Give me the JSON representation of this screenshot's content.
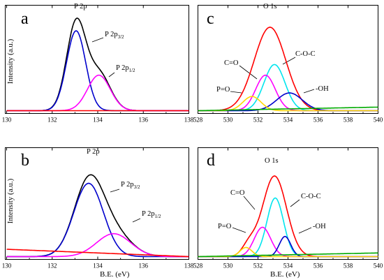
{
  "chart_data": [
    {
      "panel": "a",
      "type": "line",
      "xlim": [
        130,
        138
      ],
      "x_ticks": [
        130,
        132,
        134,
        136,
        138
      ],
      "xlabel": "",
      "ylabel": "Intensity (a.u.)",
      "y_ticks": "none",
      "grid": false,
      "legend": "none",
      "series": [
        {
          "color": "#000000",
          "peaks": [
            {
              "center": 133.05,
              "height": 0.98,
              "width": 0.42
            },
            {
              "center": 134.05,
              "height": 0.42,
              "width": 0.5
            }
          ]
        },
        {
          "color": "#0000cc",
          "peaks": [
            {
              "center": 133.05,
              "height": 0.9,
              "width": 0.42
            }
          ]
        },
        {
          "color": "#ff00ff",
          "peaks": [
            {
              "center": 134.05,
              "height": 0.4,
              "width": 0.5
            }
          ]
        },
        {
          "color": "#ff0000",
          "baseline": [
            0.0,
            0.0
          ]
        }
      ],
      "annotations": [
        {
          "text": "P 2p"
        },
        {
          "text": "P 2p",
          "sub": "3/2"
        },
        {
          "text": "P 2p",
          "sub": "1/2"
        }
      ]
    },
    {
      "panel": "b",
      "type": "line",
      "xlim": [
        130,
        138
      ],
      "x_ticks": [
        130,
        132,
        134,
        136,
        138
      ],
      "xlabel": "B.E. (eV)",
      "ylabel": "Intensity (a.u.)",
      "y_ticks": "none",
      "grid": false,
      "legend": "none",
      "series": [
        {
          "color": "#000000",
          "peaks": [
            {
              "center": 133.6,
              "height": 0.8,
              "width": 0.65
            },
            {
              "center": 134.7,
              "height": 0.25,
              "width": 0.75
            }
          ]
        },
        {
          "color": "#0000cc",
          "peaks": [
            {
              "center": 133.6,
              "height": 0.8,
              "width": 0.65
            }
          ]
        },
        {
          "color": "#ff00ff",
          "peaks": [
            {
              "center": 134.7,
              "height": 0.25,
              "width": 0.75
            }
          ]
        },
        {
          "color": "#ff0000",
          "baseline": [
            0.08,
            0.0
          ]
        }
      ],
      "annotations": [
        {
          "text": "P 2p"
        },
        {
          "text": "P 2p",
          "sub": "3/2"
        },
        {
          "text": "P 2p",
          "sub": "1/2"
        }
      ]
    },
    {
      "panel": "c",
      "type": "line",
      "xlim": [
        528,
        540
      ],
      "x_ticks": [
        528,
        530,
        532,
        534,
        536,
        538,
        540
      ],
      "xlabel": "",
      "ylabel": "",
      "y_ticks": "none",
      "grid": false,
      "legend": "none",
      "series": [
        {
          "color": "#ff0000",
          "peaks": [
            {
              "center": 532.8,
              "height": 0.94,
              "width": 1.05
            }
          ]
        },
        {
          "color": "#00e5ee",
          "peaks": [
            {
              "center": 533.1,
              "height": 0.52,
              "width": 0.7
            }
          ]
        },
        {
          "color": "#ff00ff",
          "peaks": [
            {
              "center": 532.5,
              "height": 0.4,
              "width": 0.65
            }
          ]
        },
        {
          "color": "#0000cc",
          "peaks": [
            {
              "center": 534.1,
              "height": 0.2,
              "width": 0.85
            }
          ]
        },
        {
          "color": "#ffd700",
          "peaks": [
            {
              "center": 531.6,
              "height": 0.16,
              "width": 0.6
            }
          ]
        },
        {
          "color": "#00aa00",
          "baseline": [
            0.0,
            0.04
          ]
        }
      ],
      "annotations": [
        {
          "text": "O 1s"
        },
        {
          "text": "C-O-C"
        },
        {
          "text": "C=O"
        },
        {
          "text": "P=O"
        },
        {
          "text": "-OH"
        }
      ]
    },
    {
      "panel": "d",
      "type": "line",
      "xlim": [
        528,
        540
      ],
      "x_ticks": [
        528,
        530,
        532,
        534,
        536,
        538,
        540
      ],
      "xlabel": "B.E. (eV)",
      "ylabel": "",
      "y_ticks": "none",
      "grid": false,
      "legend": "none",
      "series": [
        {
          "color": "#ff0000",
          "peaks": [
            {
              "center": 533.1,
              "height": 0.88,
              "width": 0.8
            },
            {
              "center": 531.4,
              "height": 0.12,
              "width": 0.45
            }
          ]
        },
        {
          "color": "#00e5ee",
          "peaks": [
            {
              "center": 533.15,
              "height": 0.64,
              "width": 0.55
            }
          ]
        },
        {
          "color": "#ff00ff",
          "peaks": [
            {
              "center": 532.3,
              "height": 0.32,
              "width": 0.55
            }
          ]
        },
        {
          "color": "#0000cc",
          "peaks": [
            {
              "center": 533.8,
              "height": 0.22,
              "width": 0.38
            }
          ]
        },
        {
          "color": "#ffd700",
          "peaks": [
            {
              "center": 531.2,
              "height": 0.1,
              "width": 0.4
            }
          ]
        },
        {
          "color": "#00aa00",
          "baseline": [
            0.0,
            0.04
          ]
        }
      ],
      "annotations": [
        {
          "text": "O 1s"
        },
        {
          "text": "C-O-C"
        },
        {
          "text": "C=O"
        },
        {
          "text": "P=O"
        },
        {
          "text": "-OH"
        }
      ]
    }
  ]
}
